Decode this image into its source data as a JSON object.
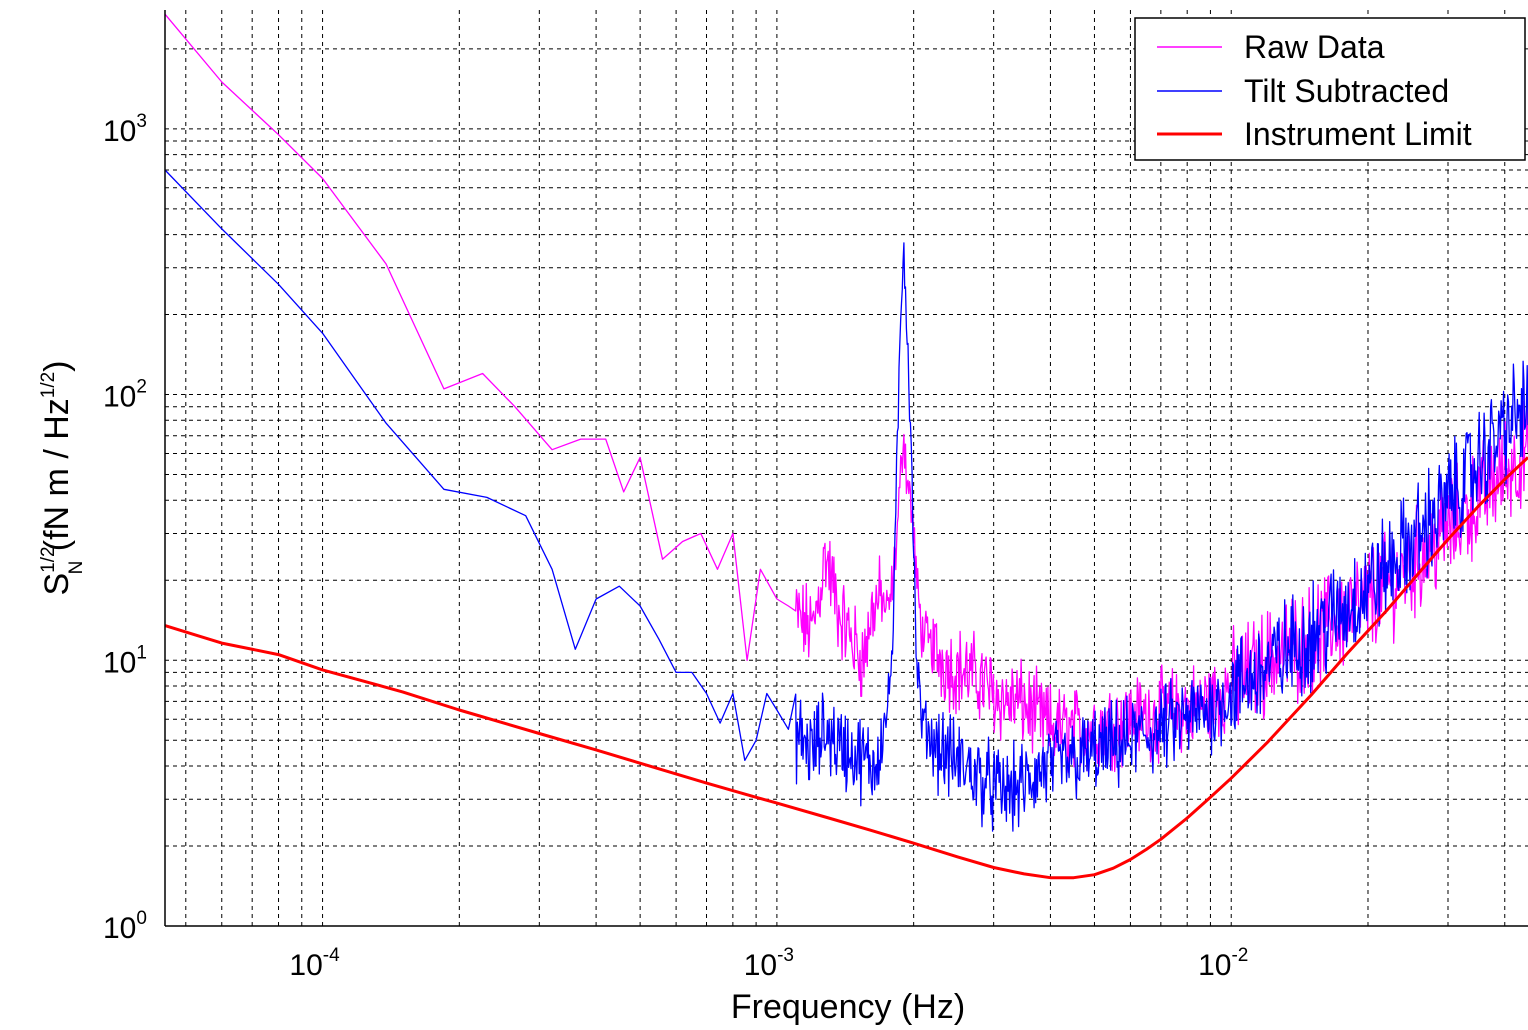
{
  "chart_data": {
    "type": "line",
    "xlabel": "Frequency (Hz)",
    "ylabel": {
      "main": "S",
      "sup": "1/2",
      "sub": "N",
      "units_open": "(fN m / Hz",
      "units_sup": "1/2",
      "units_close": ")"
    },
    "x_scale": "log",
    "y_scale": "log",
    "xlim": [
      4.5e-05,
      0.045
    ],
    "ylim": [
      1,
      2800
    ],
    "grid": true,
    "x_ticks": [
      {
        "value": 0.0001,
        "base": "10",
        "exp": "-4"
      },
      {
        "value": 0.001,
        "base": "10",
        "exp": "-3"
      },
      {
        "value": 0.01,
        "base": "10",
        "exp": "-2"
      }
    ],
    "y_ticks": [
      {
        "value": 1,
        "base": "10",
        "exp": "0"
      },
      {
        "value": 10,
        "base": "10",
        "exp": "1"
      },
      {
        "value": 100,
        "base": "10",
        "exp": "2"
      },
      {
        "value": 1000,
        "base": "10",
        "exp": "3"
      }
    ],
    "legend": {
      "placement": "top-right"
    },
    "series": [
      {
        "name": "Raw Data",
        "color": "#ff00ff",
        "noisy_from": 0.0011,
        "x": [
          4.5e-05,
          6e-05,
          8e-05,
          0.0001,
          0.000138,
          0.000185,
          0.000225,
          0.000265,
          0.00032,
          0.00037,
          0.00042,
          0.00046,
          0.0005,
          0.00056,
          0.00062,
          0.00068,
          0.00074,
          0.0008,
          0.00086,
          0.00092,
          0.001,
          0.00106,
          0.00113,
          0.0012,
          0.00128,
          0.00137,
          0.00146,
          0.00155,
          0.00163,
          0.0017,
          0.00176,
          0.0018,
          0.00184,
          0.00188,
          0.0019,
          0.00193,
          0.00197,
          0.002,
          0.00203,
          0.00208,
          0.0022,
          0.0024,
          0.0026,
          0.0028,
          0.003,
          0.0032,
          0.0034,
          0.0036,
          0.0038,
          0.004,
          0.0045,
          0.005,
          0.0055,
          0.006,
          0.007,
          0.008,
          0.009,
          0.01,
          0.012,
          0.015,
          0.018,
          0.022,
          0.026,
          0.03,
          0.035,
          0.04,
          0.045
        ],
        "y": [
          2700,
          1500,
          950,
          650,
          310,
          105,
          120,
          90,
          62,
          68,
          68,
          43,
          58,
          24,
          28,
          30,
          22,
          30,
          10,
          22,
          17,
          16,
          14,
          13,
          25,
          15,
          12,
          10,
          16,
          17,
          15,
          20,
          30,
          55,
          75,
          50,
          40,
          30,
          20,
          13,
          11,
          9.5,
          9,
          8.5,
          7.5,
          7,
          7,
          6.5,
          6,
          5.6,
          5.4,
          5.6,
          5.8,
          6,
          6.3,
          6.6,
          7,
          8,
          10,
          12,
          15,
          19,
          24,
          31,
          40,
          52,
          60
        ]
      },
      {
        "name": "Tilt Subtracted",
        "color": "#0000ff",
        "noisy_from": 0.0011,
        "x": [
          4.5e-05,
          6e-05,
          8e-05,
          0.0001,
          0.000138,
          0.000185,
          0.00023,
          0.00028,
          0.00032,
          0.00036,
          0.0004,
          0.00045,
          0.0005,
          0.00055,
          0.0006,
          0.00065,
          0.0007,
          0.00075,
          0.0008,
          0.00085,
          0.0009,
          0.00095,
          0.001,
          0.00106,
          0.00113,
          0.0012,
          0.00128,
          0.00137,
          0.00146,
          0.00155,
          0.00163,
          0.0017,
          0.00176,
          0.0018,
          0.00183,
          0.00186,
          0.00189,
          0.0019,
          0.00192,
          0.00195,
          0.00198,
          0.002,
          0.00203,
          0.00208,
          0.0022,
          0.0024,
          0.0026,
          0.0028,
          0.003,
          0.0032,
          0.0034,
          0.0036,
          0.0038,
          0.004,
          0.0045,
          0.005,
          0.0055,
          0.006,
          0.007,
          0.008,
          0.009,
          0.01,
          0.012,
          0.015,
          0.018,
          0.022,
          0.026,
          0.03,
          0.035,
          0.04,
          0.045
        ],
        "y": [
          700,
          420,
          260,
          170,
          78,
          44,
          41,
          35,
          22,
          11,
          17,
          19,
          16,
          12,
          9,
          9,
          7.5,
          5.8,
          7.5,
          4.2,
          5,
          7.5,
          6.5,
          5.5,
          5,
          4.5,
          5.5,
          4.8,
          4.5,
          4.2,
          4,
          5,
          7,
          12,
          40,
          120,
          300,
          400,
          250,
          120,
          60,
          25,
          10,
          6,
          5,
          4.3,
          4,
          3.6,
          3.3,
          3.2,
          3.3,
          3.5,
          3.8,
          4,
          4.2,
          4.5,
          4.7,
          5,
          5.5,
          6,
          6.6,
          7.5,
          9.5,
          12.5,
          16,
          22,
          30,
          40,
          55,
          75,
          90
        ]
      },
      {
        "name": "Instrument Limit",
        "color": "#ff0000",
        "noisy_from": null,
        "x": [
          4.5e-05,
          6e-05,
          8e-05,
          0.0001,
          0.00015,
          0.0002,
          0.0003,
          0.0004,
          0.0005,
          0.0007,
          0.0009,
          0.001,
          0.0013,
          0.0016,
          0.002,
          0.0025,
          0.003,
          0.0035,
          0.004,
          0.0045,
          0.005,
          0.0055,
          0.006,
          0.0065,
          0.007,
          0.008,
          0.009,
          0.01,
          0.012,
          0.015,
          0.018,
          0.022,
          0.026,
          0.03,
          0.035,
          0.04,
          0.045
        ],
        "y": [
          13.5,
          11.6,
          10.5,
          9.2,
          7.6,
          6.5,
          5.3,
          4.6,
          4.1,
          3.45,
          3.05,
          2.9,
          2.55,
          2.3,
          2.05,
          1.82,
          1.66,
          1.57,
          1.52,
          1.52,
          1.56,
          1.65,
          1.78,
          1.94,
          2.12,
          2.55,
          3.05,
          3.6,
          4.9,
          7.4,
          10.6,
          15.4,
          21.5,
          28.5,
          38,
          48,
          58
        ]
      }
    ]
  }
}
